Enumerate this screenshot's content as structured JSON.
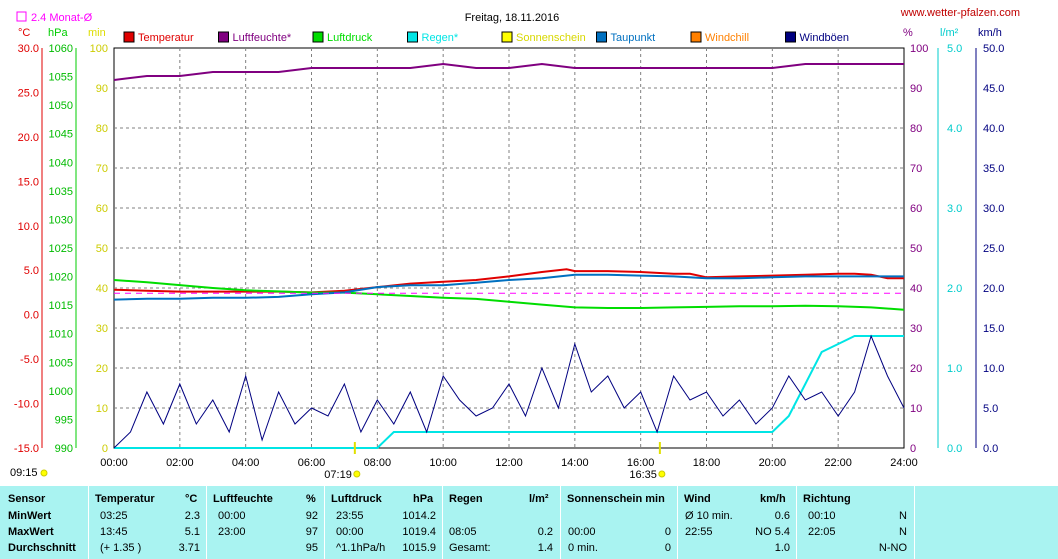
{
  "title": "Freitag, 18.11.2016",
  "site": "www.wetter-pfalzen.com",
  "avg_note": "2.4 Monat-Ø",
  "units": {
    "temp": "°C",
    "pressure": "hPa",
    "percent_left": "min",
    "percent_right": "%",
    "rain": "l/m²",
    "wind": "km/h"
  },
  "legend": [
    {
      "label": "Temperatur",
      "color": "#e00000"
    },
    {
      "label": "Luftfeuchte*",
      "color": "#800080"
    },
    {
      "label": "Luftdruck",
      "color": "#00dd00"
    },
    {
      "label": "Regen*",
      "color": "#00e5e5"
    },
    {
      "label": "Sonnenschein",
      "color": "#ffff00"
    },
    {
      "label": "Taupunkt",
      "color": "#0070c0"
    },
    {
      "label": "Windchill",
      "color": "#ff8000"
    },
    {
      "label": "Windböen",
      "color": "#000080"
    }
  ],
  "axis_labels": {
    "temp": [
      "30.0",
      "25.0",
      "20.0",
      "15.0",
      "10.0",
      "5.0",
      "0.0",
      "-5.0",
      "-10.0",
      "-15.0"
    ],
    "pressure": [
      "1060",
      "1055",
      "1050",
      "1045",
      "1040",
      "1035",
      "1030",
      "1025",
      "1020",
      "1015",
      "1010",
      "1005",
      "1000",
      "995",
      "990"
    ],
    "percent_left": [
      "100",
      "90",
      "80",
      "70",
      "60",
      "50",
      "40",
      "30",
      "20",
      "10",
      "0"
    ],
    "percent_right": [
      "100",
      "90",
      "80",
      "70",
      "60",
      "50",
      "40",
      "30",
      "20",
      "10",
      "0"
    ],
    "rain": [
      "5.0",
      "4.0",
      "3.0",
      "2.0",
      "1.0",
      "0.0"
    ],
    "wind": [
      "50.0",
      "45.0",
      "40.0",
      "35.0",
      "30.0",
      "25.0",
      "20.0",
      "15.0",
      "10.0",
      "5.0",
      "0.0"
    ],
    "x": [
      "00:00",
      "02:00",
      "04:00",
      "06:00",
      "08:00",
      "10:00",
      "12:00",
      "14:00",
      "16:00",
      "18:00",
      "20:00",
      "22:00",
      "24:00"
    ]
  },
  "sun_marks": {
    "sunrise": "07:19",
    "sunset": "16:35",
    "sunshine_start": "09:15"
  },
  "chart_data": {
    "type": "line",
    "title": "Freitag, 18.11.2016",
    "x_unit": "hours",
    "xlim": [
      0,
      24
    ],
    "grid": true,
    "legend_position": "top",
    "axes": {
      "temp_c": [
        -15,
        30
      ],
      "pressure_hpa": [
        990,
        1060
      ],
      "percent": [
        0,
        100
      ],
      "rain_l_m2": [
        0,
        5
      ],
      "wind_kmh": [
        0,
        50
      ]
    },
    "series": [
      {
        "name": "Temperatur",
        "axis": "temp_c",
        "color": "#e00000",
        "x": [
          0,
          1,
          2,
          3,
          4,
          5,
          6,
          7,
          8,
          9,
          10,
          11,
          12,
          13,
          13.75,
          14,
          15,
          16,
          17,
          17.5,
          18,
          19,
          20,
          21,
          22,
          22.5,
          23,
          23.5,
          24
        ],
        "y": [
          2.8,
          2.7,
          2.6,
          2.6,
          2.6,
          2.6,
          2.5,
          2.7,
          3.1,
          3.5,
          3.7,
          3.9,
          4.3,
          4.8,
          5.1,
          4.9,
          4.9,
          4.8,
          4.6,
          4.6,
          4.2,
          4.3,
          4.4,
          4.5,
          4.6,
          4.6,
          4.5,
          4.1,
          4.1
        ]
      },
      {
        "name": "Luftfeuchte*",
        "axis": "percent",
        "color": "#800080",
        "x": [
          0,
          1,
          2,
          3,
          4,
          5,
          6,
          7,
          8,
          9,
          10,
          11,
          12,
          13,
          14,
          15,
          16,
          17,
          18,
          19,
          20,
          21,
          22,
          23,
          24
        ],
        "y": [
          92,
          93,
          93,
          94,
          94,
          94,
          95,
          95,
          95,
          95,
          96,
          95,
          95,
          96,
          95,
          95,
          95,
          95,
          95,
          95,
          95,
          96,
          96,
          96,
          96
        ]
      },
      {
        "name": "Luftdruck",
        "axis": "pressure_hpa",
        "color": "#00dd00",
        "x": [
          0,
          1,
          2,
          3,
          4,
          5,
          6,
          7,
          8,
          9,
          10,
          11,
          12,
          13,
          14,
          15,
          16,
          17,
          18,
          19,
          20,
          21,
          22,
          23,
          24
        ],
        "y": [
          1019.4,
          1019.0,
          1018.5,
          1018.0,
          1017.6,
          1017.4,
          1017.2,
          1017.2,
          1016.9,
          1016.6,
          1016.3,
          1016.1,
          1015.6,
          1015.1,
          1014.6,
          1014.5,
          1014.5,
          1014.6,
          1014.7,
          1014.8,
          1014.8,
          1014.9,
          1014.8,
          1014.6,
          1014.2
        ]
      },
      {
        "name": "Regen*",
        "axis": "rain_l_m2",
        "color": "#00e5e5",
        "x": [
          0,
          8.0,
          8.5,
          9,
          12,
          15,
          18,
          20,
          20.5,
          21,
          21.5,
          22,
          22.5,
          23,
          24
        ],
        "y": [
          0,
          0,
          0.2,
          0.2,
          0.2,
          0.2,
          0.2,
          0.2,
          0.4,
          0.8,
          1.2,
          1.3,
          1.4,
          1.4,
          1.4
        ]
      },
      {
        "name": "Taupunkt",
        "axis": "temp_c",
        "color": "#0070c0",
        "x": [
          0,
          1,
          2,
          3,
          4,
          5,
          6,
          7,
          8,
          9,
          10,
          11,
          12,
          13,
          14,
          15,
          16,
          17,
          18,
          19,
          20,
          21,
          22,
          23,
          24
        ],
        "y": [
          1.7,
          1.8,
          1.8,
          1.9,
          1.9,
          2.0,
          2.3,
          2.5,
          3.1,
          3.3,
          3.3,
          3.6,
          3.9,
          4.1,
          4.5,
          4.5,
          4.4,
          4.3,
          4.1,
          4.1,
          4.2,
          4.3,
          4.3,
          4.3,
          4.3
        ]
      },
      {
        "name": "2.4 Monat-Ø",
        "axis": "temp_c",
        "color": "#ff00ff",
        "dashed": true,
        "x": [
          0,
          24
        ],
        "y": [
          2.4,
          2.4
        ]
      },
      {
        "name": "Windböen",
        "axis": "wind_kmh",
        "color": "#000080",
        "x": [
          0,
          0.5,
          1,
          1.5,
          2,
          2.5,
          3,
          3.5,
          4,
          4.5,
          5,
          5.5,
          6,
          6.5,
          7,
          7.5,
          8,
          8.5,
          9,
          9.5,
          10,
          10.5,
          11,
          11.5,
          12,
          12.5,
          13,
          13.5,
          14,
          14.5,
          15,
          15.5,
          16,
          16.5,
          17,
          17.5,
          18,
          18.5,
          19,
          19.5,
          20,
          20.5,
          21,
          21.5,
          22,
          22.5,
          23,
          23.5,
          24
        ],
        "y": [
          0,
          2,
          7,
          3,
          8,
          3,
          6,
          2,
          9,
          1,
          7,
          3,
          5,
          4,
          8,
          2,
          6,
          3,
          7,
          2,
          9,
          6,
          4,
          5,
          8,
          4,
          10,
          5,
          13,
          7,
          9,
          5,
          7,
          2,
          9,
          6,
          7,
          4,
          6,
          3,
          5,
          9,
          6,
          7,
          4,
          7,
          14,
          9,
          5
        ]
      }
    ]
  },
  "stats_table": {
    "headers": {
      "sensor": "Sensor",
      "temp": "Temperatur",
      "temp_unit": "°C",
      "hum": "Luftfeuchte",
      "hum_unit": "%",
      "pres": "Luftdruck",
      "pres_unit": "hPa",
      "rain": "Regen",
      "rain_unit": "l/m²",
      "sun": "Sonnenschein min",
      "wind": "Wind",
      "wind_unit": "km/h",
      "dir": "Richtung"
    },
    "rows": [
      {
        "label": "MinWert",
        "temp_time": "03:25",
        "temp_val": "2.3",
        "hum_time": "00:00",
        "hum_val": "92",
        "pres_time": "23:55",
        "pres_val": "1014.2",
        "rain_time": "",
        "rain_val": "",
        "sun_time": "",
        "sun_val": "",
        "wind_time": "Ø 10 min.",
        "wind_val": "0.6",
        "dir_time": "00:10",
        "dir_val": "N"
      },
      {
        "label": "MaxWert",
        "temp_time": "13:45",
        "temp_val": "5.1",
        "hum_time": "23:00",
        "hum_val": "97",
        "pres_time": "00:00",
        "pres_val": "1019.4",
        "rain_time": "08:05",
        "rain_val": "0.2",
        "sun_time": "00:00",
        "sun_val": "0",
        "wind_time": "22:55",
        "wind_val": "NO 5.4",
        "dir_time": "22:05",
        "dir_val": "N"
      },
      {
        "label": "Durchschnitt",
        "temp_time": "(+ 1.35 )",
        "temp_val": "3.71",
        "hum_time": "",
        "hum_val": "95",
        "pres_time": "^1.1hPa/h",
        "pres_val": "1015.9",
        "rain_time": "Gesamt:",
        "rain_val": "1.4",
        "sun_time": "0 min.",
        "sun_val": "0",
        "wind_time": "",
        "wind_val": "1.0",
        "dir_time": "",
        "dir_val": "N-NO"
      }
    ]
  }
}
